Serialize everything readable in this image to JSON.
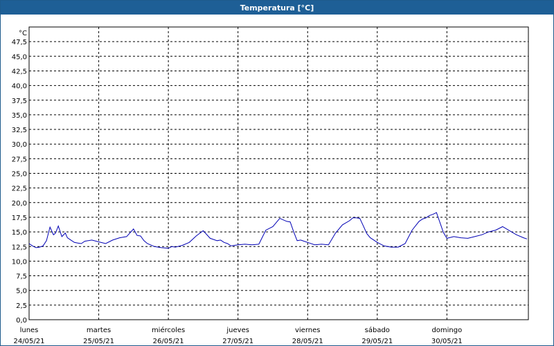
{
  "window": {
    "title": "Temperatura [°C]"
  },
  "chart_data": {
    "type": "line",
    "title": "Temperatura [°C]",
    "ylabel": "°C",
    "xlabel": "",
    "ylim": [
      0,
      50
    ],
    "y_ticks": [
      "0,0",
      "2,5",
      "5,0",
      "7,5",
      "10,0",
      "12,5",
      "15,0",
      "17,5",
      "20,0",
      "22,5",
      "25,0",
      "27,5",
      "30,0",
      "32,5",
      "35,0",
      "37,5",
      "40,0",
      "42,5",
      "45,0",
      "47,5"
    ],
    "y_tick_values": [
      0,
      2.5,
      5,
      7.5,
      10,
      12.5,
      15,
      17.5,
      20,
      22.5,
      25,
      27.5,
      30,
      32.5,
      35,
      37.5,
      40,
      42.5,
      45,
      47.5
    ],
    "x_ticks": [
      {
        "day": "lunes",
        "date": "24/05/21"
      },
      {
        "day": "martes",
        "date": "25/05/21"
      },
      {
        "day": "miércoles",
        "date": "26/05/21"
      },
      {
        "day": "jueves",
        "date": "27/05/21"
      },
      {
        "day": "viernes",
        "date": "28/05/21"
      },
      {
        "day": "sábado",
        "date": "29/05/21"
      },
      {
        "day": "domingo",
        "date": "30/05/21"
      }
    ],
    "xlim_days": [
      0,
      7.17
    ],
    "grid": true,
    "series": [
      {
        "color": "#0000b4",
        "x_days": [
          0,
          0.05,
          0.1,
          0.15,
          0.2,
          0.25,
          0.3,
          0.35,
          0.38,
          0.42,
          0.47,
          0.52,
          0.55,
          0.6,
          0.65,
          0.7,
          0.75,
          0.8,
          0.9,
          1.0,
          1.1,
          1.2,
          1.3,
          1.4,
          1.5,
          1.55,
          1.6,
          1.65,
          1.7,
          1.8,
          1.9,
          2.0,
          2.05,
          2.1,
          2.2,
          2.3,
          2.4,
          2.5,
          2.6,
          2.7,
          2.75,
          2.8,
          2.85,
          2.9,
          3.0,
          3.1,
          3.2,
          3.3,
          3.4,
          3.5,
          3.6,
          3.7,
          3.75,
          3.8,
          3.85,
          3.9,
          3.95,
          4.0,
          4.1,
          4.2,
          4.3,
          4.4,
          4.5,
          4.6,
          4.65,
          4.7,
          4.75,
          4.8,
          4.85,
          4.9,
          4.95,
          5.0,
          5.1,
          5.2,
          5.3,
          5.4,
          5.5,
          5.6,
          5.65,
          5.7,
          5.75,
          5.8,
          5.85,
          5.9,
          5.95,
          6.0,
          6.1,
          6.2,
          6.3,
          6.4,
          6.5,
          6.6,
          6.7,
          6.8,
          6.9,
          7.0,
          7.1,
          7.15
        ],
        "values": [
          13.0,
          12.6,
          12.3,
          12.4,
          12.6,
          13.5,
          15.8,
          14.5,
          14.8,
          16.0,
          14.2,
          14.8,
          14.0,
          13.6,
          13.2,
          13.1,
          13.0,
          13.4,
          13.6,
          13.3,
          13.0,
          13.6,
          14.0,
          14.2,
          15.5,
          14.4,
          14.3,
          13.5,
          13.0,
          12.5,
          12.3,
          12.2,
          12.5,
          12.4,
          12.7,
          13.2,
          14.3,
          15.2,
          13.9,
          13.5,
          13.6,
          13.2,
          13.0,
          12.6,
          12.8,
          12.9,
          12.8,
          12.9,
          15.3,
          15.9,
          17.3,
          16.8,
          16.7,
          15.0,
          13.5,
          13.6,
          13.4,
          13.2,
          12.8,
          12.9,
          12.8,
          14.8,
          16.2,
          16.9,
          17.4,
          17.4,
          17.3,
          16.0,
          14.7,
          14.0,
          13.6,
          13.2,
          12.6,
          12.4,
          12.4,
          13.0,
          15.3,
          16.8,
          17.2,
          17.4,
          17.8,
          18.0,
          18.3,
          16.6,
          14.9,
          13.9,
          14.2,
          14.0,
          13.9,
          14.2,
          14.5,
          15.0,
          15.3,
          15.9,
          15.2,
          14.5,
          14.0,
          13.8
        ]
      }
    ]
  }
}
